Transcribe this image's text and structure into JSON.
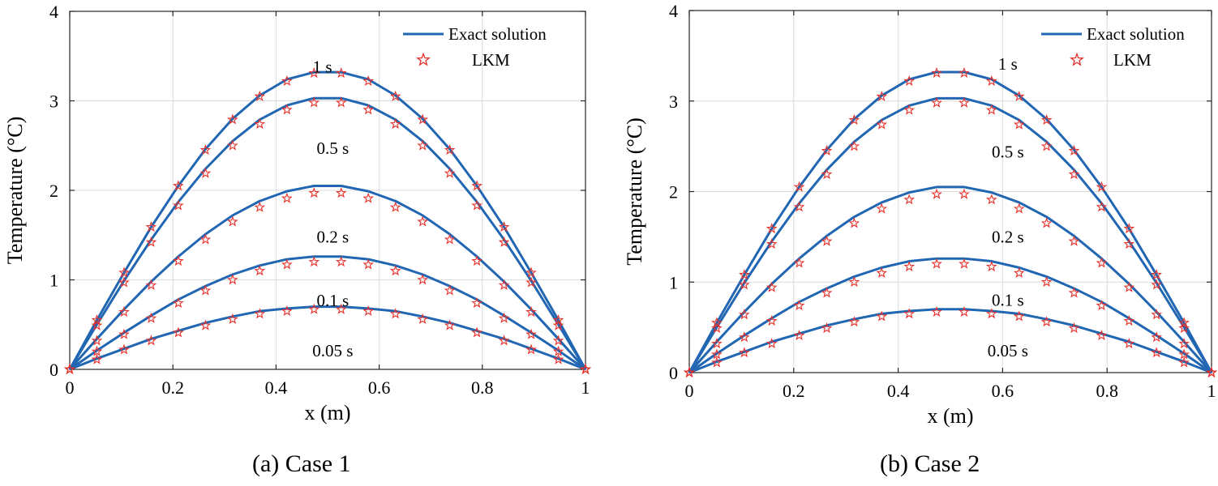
{
  "colors": {
    "line": "#2166b2",
    "marker": "#e8302a",
    "grid": "#dcdcdc",
    "axis": "#262626"
  },
  "chart_data": [
    {
      "type": "line",
      "title": "(a) Case 1",
      "xlabel": "x (m)",
      "ylabel": "Temperature (°C)",
      "xlim": [
        0,
        1
      ],
      "ylim": [
        0,
        4
      ],
      "grid": true,
      "legend_position": "top-right",
      "legend": [
        "Exact solution",
        "LKM"
      ],
      "xticks": [
        "0",
        "0.2",
        "0.4",
        "0.6",
        "0.8",
        "1"
      ],
      "yticks": [
        "0",
        "1",
        "2",
        "3",
        "4"
      ],
      "x": [
        0,
        0.0526,
        0.1053,
        0.1579,
        0.2105,
        0.2632,
        0.3158,
        0.3684,
        0.4211,
        0.4737,
        0.5263,
        0.5789,
        0.6316,
        0.6842,
        0.7368,
        0.7895,
        0.8421,
        0.8947,
        0.9474,
        1
      ],
      "series": [
        {
          "name": "Exact solution 1 s",
          "label": "1 s",
          "values": [
            0,
            0.55,
            1.08,
            1.59,
            2.05,
            2.46,
            2.8,
            3.06,
            3.24,
            3.32,
            3.32,
            3.24,
            3.06,
            2.8,
            2.46,
            2.05,
            1.59,
            1.08,
            0.55,
            0
          ]
        },
        {
          "name": "Exact solution 0.5 s",
          "label": "0.5 s",
          "values": [
            0,
            0.5,
            0.99,
            1.45,
            1.87,
            2.24,
            2.55,
            2.79,
            2.95,
            3.03,
            3.03,
            2.95,
            2.79,
            2.55,
            2.24,
            1.87,
            1.45,
            0.99,
            0.5,
            0
          ]
        },
        {
          "name": "Exact solution 0.2 s",
          "label": "0.2 s",
          "values": [
            0,
            0.34,
            0.67,
            0.98,
            1.26,
            1.51,
            1.72,
            1.88,
            1.99,
            2.05,
            2.05,
            1.99,
            1.88,
            1.72,
            1.51,
            1.26,
            0.98,
            0.67,
            0.34,
            0
          ]
        },
        {
          "name": "Exact solution 0.1 s",
          "label": "0.1 s",
          "values": [
            0,
            0.21,
            0.41,
            0.6,
            0.78,
            0.93,
            1.06,
            1.16,
            1.23,
            1.26,
            1.26,
            1.23,
            1.16,
            1.06,
            0.93,
            0.78,
            0.6,
            0.41,
            0.21,
            0
          ]
        },
        {
          "name": "Exact solution 0.05 s",
          "label": "0.05 s",
          "values": [
            0,
            0.12,
            0.23,
            0.34,
            0.43,
            0.52,
            0.59,
            0.65,
            0.68,
            0.7,
            0.7,
            0.68,
            0.65,
            0.59,
            0.52,
            0.43,
            0.34,
            0.23,
            0.12,
            0
          ]
        },
        {
          "name": "LKM 1 s",
          "values": [
            0,
            0.55,
            1.08,
            1.59,
            2.05,
            2.45,
            2.79,
            3.05,
            3.22,
            3.31,
            3.31,
            3.22,
            3.05,
            2.79,
            2.45,
            2.05,
            1.59,
            1.08,
            0.55,
            0
          ]
        },
        {
          "name": "LKM 0.5 s",
          "values": [
            0,
            0.49,
            0.97,
            1.42,
            1.83,
            2.19,
            2.5,
            2.74,
            2.9,
            2.98,
            2.98,
            2.9,
            2.74,
            2.5,
            2.19,
            1.83,
            1.42,
            0.97,
            0.49,
            0
          ]
        },
        {
          "name": "LKM 0.2 s",
          "values": [
            0,
            0.32,
            0.64,
            0.94,
            1.21,
            1.45,
            1.65,
            1.81,
            1.91,
            1.97,
            1.97,
            1.91,
            1.81,
            1.65,
            1.45,
            1.21,
            0.94,
            0.64,
            0.32,
            0
          ]
        },
        {
          "name": "LKM 0.1 s",
          "values": [
            0,
            0.2,
            0.39,
            0.57,
            0.74,
            0.88,
            1.0,
            1.1,
            1.17,
            1.2,
            1.2,
            1.17,
            1.1,
            1.0,
            0.88,
            0.74,
            0.57,
            0.39,
            0.2,
            0
          ]
        },
        {
          "name": "LKM 0.05 s",
          "values": [
            0,
            0.11,
            0.22,
            0.32,
            0.41,
            0.49,
            0.56,
            0.62,
            0.65,
            0.67,
            0.67,
            0.65,
            0.62,
            0.56,
            0.49,
            0.41,
            0.32,
            0.22,
            0.11,
            0
          ]
        }
      ],
      "labels": [
        {
          "text": "1 s",
          "x": 0.49,
          "y": 3.38
        },
        {
          "text": "0.5 s",
          "x": 0.51,
          "y": 2.47
        },
        {
          "text": "0.2 s",
          "x": 0.51,
          "y": 1.48
        },
        {
          "text": "0.1 s",
          "x": 0.51,
          "y": 0.77
        },
        {
          "text": "0.05 s",
          "x": 0.51,
          "y": 0.21
        }
      ]
    },
    {
      "type": "line",
      "title": "(b) Case 2",
      "xlabel": "x (m)",
      "ylabel": "Temperature (°C)",
      "xlim": [
        0,
        1
      ],
      "ylim": [
        0,
        4
      ],
      "grid": true,
      "legend_position": "top-right",
      "legend": [
        "Exact solution",
        "LKM"
      ],
      "xticks": [
        "0",
        "0.2",
        "0.4",
        "0.6",
        "0.8",
        "1"
      ],
      "yticks": [
        "0",
        "1",
        "2",
        "3",
        "4"
      ],
      "x": [
        0,
        0.0526,
        0.1053,
        0.1579,
        0.2105,
        0.2632,
        0.3158,
        0.3684,
        0.4211,
        0.4737,
        0.5263,
        0.5789,
        0.6316,
        0.6842,
        0.7368,
        0.7895,
        0.8421,
        0.8947,
        0.9474,
        1
      ],
      "series": [
        {
          "name": "Exact solution 1 s",
          "label": "1 s",
          "values": [
            0,
            0.55,
            1.08,
            1.59,
            2.05,
            2.46,
            2.8,
            3.06,
            3.24,
            3.32,
            3.32,
            3.24,
            3.06,
            2.8,
            2.46,
            2.05,
            1.59,
            1.08,
            0.55,
            0
          ]
        },
        {
          "name": "Exact solution 0.5 s",
          "label": "0.5 s",
          "values": [
            0,
            0.5,
            0.99,
            1.45,
            1.87,
            2.24,
            2.55,
            2.79,
            2.95,
            3.03,
            3.03,
            2.95,
            2.79,
            2.55,
            2.24,
            1.87,
            1.45,
            0.99,
            0.5,
            0
          ]
        },
        {
          "name": "Exact solution 0.2 s",
          "label": "0.2 s",
          "values": [
            0,
            0.34,
            0.67,
            0.98,
            1.26,
            1.51,
            1.72,
            1.88,
            1.99,
            2.05,
            2.05,
            1.99,
            1.88,
            1.72,
            1.51,
            1.26,
            0.98,
            0.67,
            0.34,
            0
          ]
        },
        {
          "name": "Exact solution 0.1 s",
          "label": "0.1 s",
          "values": [
            0,
            0.21,
            0.41,
            0.6,
            0.78,
            0.93,
            1.06,
            1.16,
            1.23,
            1.26,
            1.26,
            1.23,
            1.16,
            1.06,
            0.93,
            0.78,
            0.6,
            0.41,
            0.21,
            0
          ]
        },
        {
          "name": "Exact solution 0.05 s",
          "label": "0.05 s",
          "values": [
            0,
            0.12,
            0.23,
            0.34,
            0.43,
            0.52,
            0.59,
            0.65,
            0.68,
            0.7,
            0.7,
            0.68,
            0.65,
            0.59,
            0.52,
            0.43,
            0.34,
            0.23,
            0.12,
            0
          ]
        },
        {
          "name": "LKM 1 s",
          "values": [
            0,
            0.55,
            1.08,
            1.59,
            2.05,
            2.45,
            2.79,
            3.05,
            3.22,
            3.31,
            3.31,
            3.22,
            3.05,
            2.79,
            2.45,
            2.05,
            1.59,
            1.08,
            0.55,
            0
          ]
        },
        {
          "name": "LKM 0.5 s",
          "values": [
            0,
            0.49,
            0.97,
            1.42,
            1.83,
            2.19,
            2.5,
            2.74,
            2.9,
            2.98,
            2.98,
            2.9,
            2.74,
            2.5,
            2.19,
            1.83,
            1.42,
            0.97,
            0.49,
            0
          ]
        },
        {
          "name": "LKM 0.2 s",
          "values": [
            0,
            0.32,
            0.64,
            0.94,
            1.21,
            1.45,
            1.65,
            1.81,
            1.91,
            1.97,
            1.97,
            1.91,
            1.81,
            1.65,
            1.45,
            1.21,
            0.94,
            0.64,
            0.32,
            0
          ]
        },
        {
          "name": "LKM 0.1 s",
          "values": [
            0,
            0.2,
            0.39,
            0.57,
            0.74,
            0.88,
            1.0,
            1.1,
            1.17,
            1.2,
            1.2,
            1.17,
            1.1,
            1.0,
            0.88,
            0.74,
            0.57,
            0.39,
            0.2,
            0
          ]
        },
        {
          "name": "LKM 0.05 s",
          "values": [
            0,
            0.11,
            0.22,
            0.32,
            0.41,
            0.49,
            0.56,
            0.62,
            0.65,
            0.67,
            0.67,
            0.65,
            0.62,
            0.56,
            0.49,
            0.41,
            0.32,
            0.22,
            0.11,
            0
          ]
        }
      ],
      "labels": [
        {
          "text": "1 s",
          "x": 0.61,
          "y": 3.41
        },
        {
          "text": "0.5 s",
          "x": 0.61,
          "y": 2.44
        },
        {
          "text": "0.2 s",
          "x": 0.61,
          "y": 1.5
        },
        {
          "text": "0.1 s",
          "x": 0.61,
          "y": 0.8
        },
        {
          "text": "0.05 s",
          "x": 0.61,
          "y": 0.24
        }
      ]
    }
  ]
}
